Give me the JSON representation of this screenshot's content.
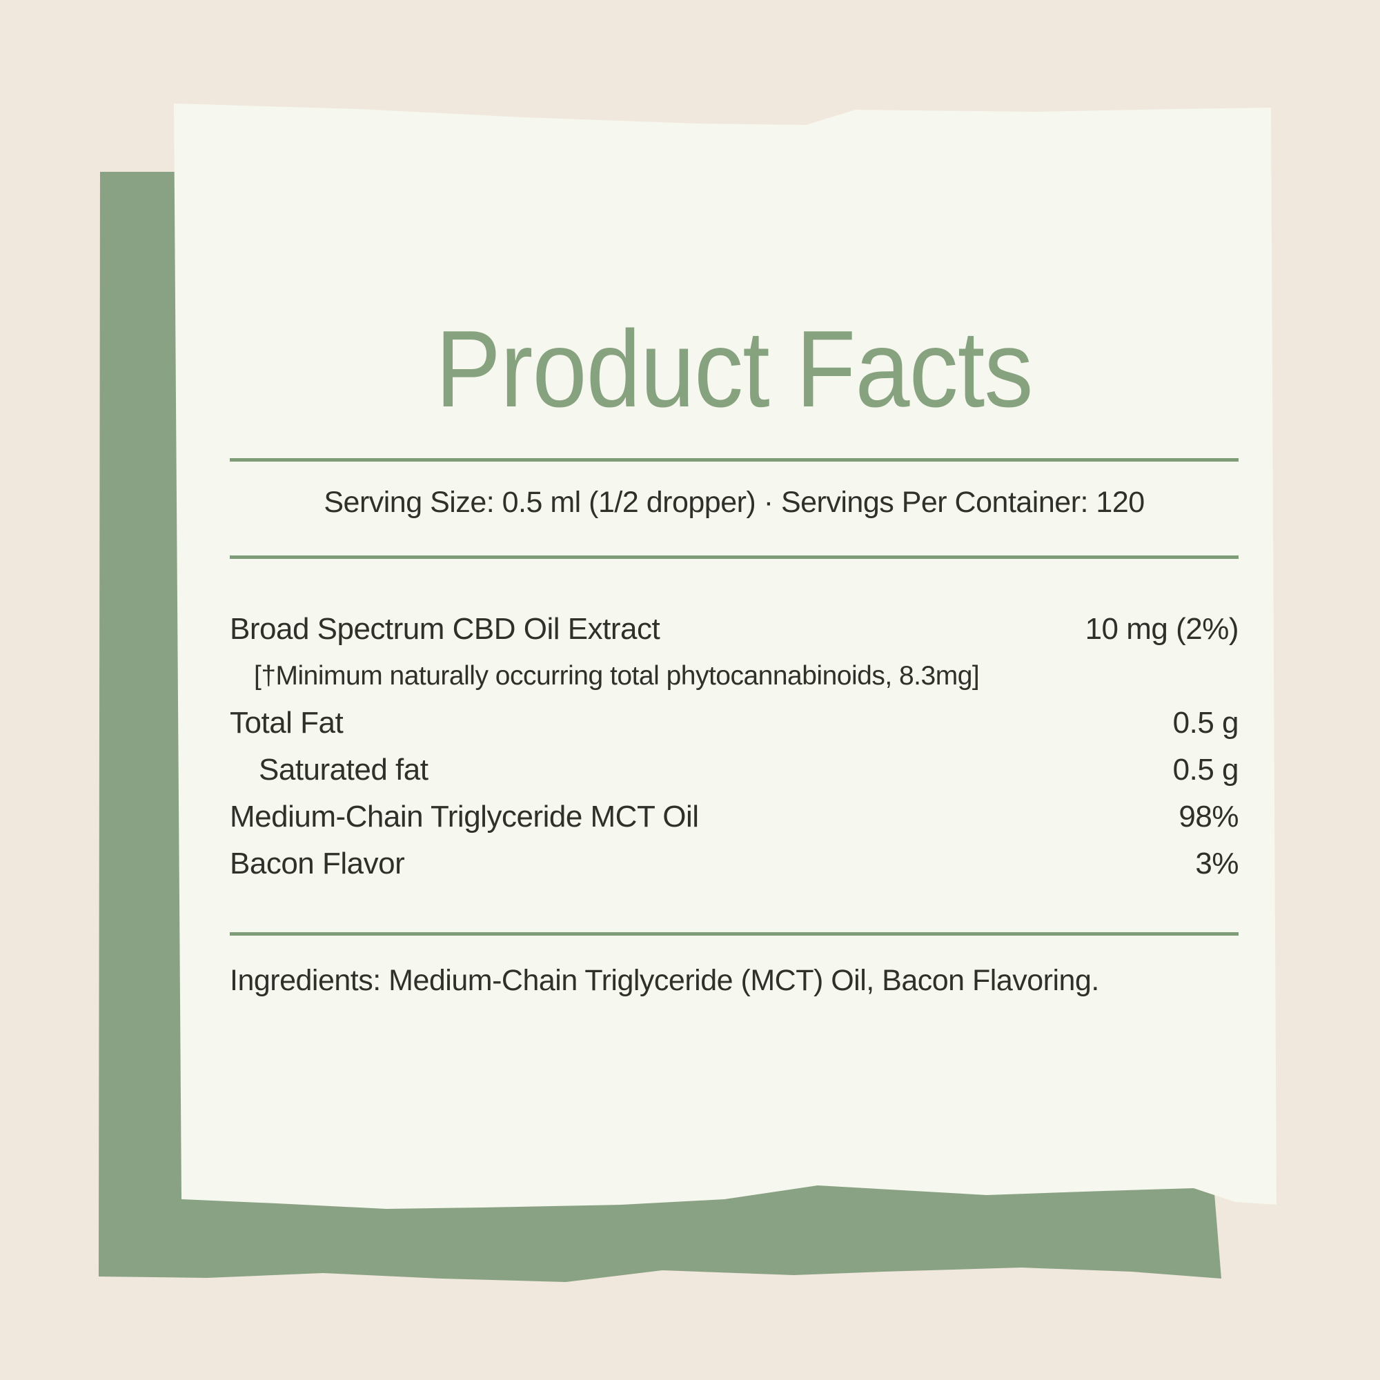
{
  "label": {
    "title": "Product Facts",
    "serving_info": "Serving Size: 0.5 ml (1/2 dropper) · Servings Per Container: 120",
    "rows": [
      {
        "name": "Broad Spectrum CBD Oil Extract",
        "amount": "10 mg (2%)"
      },
      {
        "name": "[†Minimum naturally occurring total phytocannabinoids, 8.3mg]",
        "amount": ""
      },
      {
        "name": "Total Fat",
        "amount": "0.5 g"
      },
      {
        "name": "Saturated fat",
        "amount": "0.5 g"
      },
      {
        "name": "Medium-Chain Triglyceride MCT Oil",
        "amount": "98%"
      },
      {
        "name": "Bacon Flavor",
        "amount": "3%"
      }
    ],
    "ingredients": "Ingredients: Medium-Chain Triglyceride (MCT) Oil, Bacon Flavoring."
  },
  "colors": {
    "background_beige": "#f0e7dd",
    "backdrop_green": "#8aa284",
    "paper_cream": "#f6f7ee",
    "title_green": "#87a27f",
    "rule_green": "#7f9c78",
    "body_text": "#30302b"
  }
}
